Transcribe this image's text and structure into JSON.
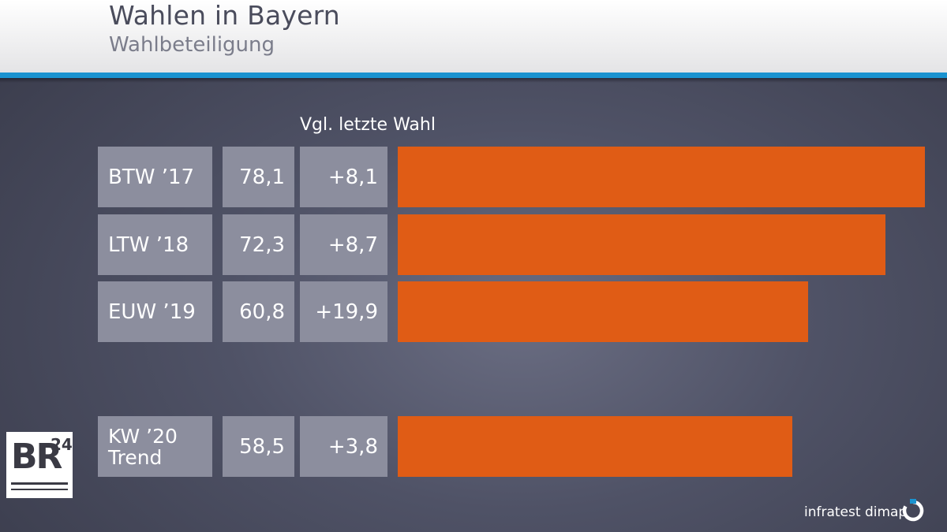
{
  "header": {
    "title": "Wahlen in Bayern",
    "subtitle": "Wahlbeteiligung"
  },
  "chart_data": {
    "type": "bar",
    "title": "Wahlen in Bayern",
    "subtitle": "Wahlbeteiligung",
    "column_header_change": "Vgl. letzte Wahl",
    "categories": [
      "BTW ’17",
      "LTW ’18",
      "EUW ’19",
      "KW ’20 Trend"
    ],
    "values": [
      78.1,
      72.3,
      60.8,
      58.5
    ],
    "value_labels": [
      "78,1",
      "72,3",
      "60,8",
      "58,5"
    ],
    "change_labels": [
      "+8,1",
      "+8,7",
      "+19,9",
      "+3,8"
    ],
    "bar_color": "#e05c15",
    "orientation": "horizontal",
    "xlim": [
      0,
      78.1
    ]
  },
  "rows": [
    {
      "label": "BTW ’17",
      "label_lines": [
        "BTW ’17"
      ],
      "value": "78,1",
      "change": "+8,1"
    },
    {
      "label": "LTW ’18",
      "label_lines": [
        "LTW ’18"
      ],
      "value": "72,3",
      "change": "+8,7"
    },
    {
      "label": "EUW ’19",
      "label_lines": [
        "EUW ’19"
      ],
      "value": "60,8",
      "change": "+19,9"
    },
    {
      "label": "KW ’20 Trend",
      "label_lines": [
        "KW ’20",
        "Trend"
      ],
      "value": "58,5",
      "change": "+3,8"
    }
  ],
  "logo": {
    "text": "BR",
    "superscript": "24"
  },
  "brand": {
    "name": "infratest dimap",
    "icon": "infratest-dimap-logo-icon"
  }
}
